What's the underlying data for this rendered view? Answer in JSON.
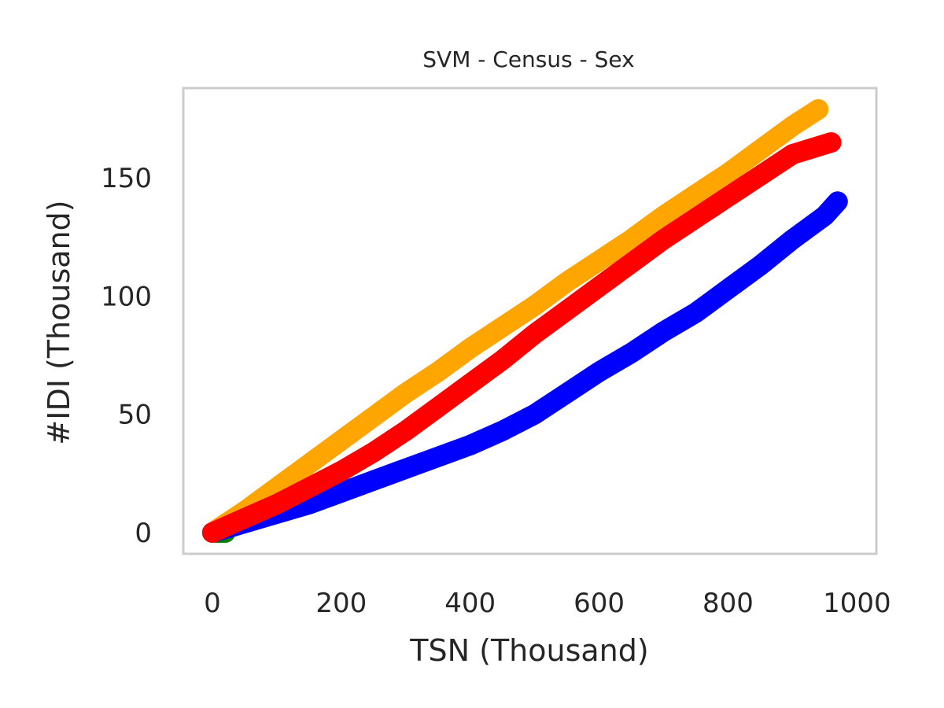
{
  "chart_data": {
    "type": "line",
    "title": "SVM - Census - Sex",
    "xlabel": "TSN (Thousand)",
    "ylabel": "#IDI (Thousand)",
    "xlim": [
      -45,
      1030
    ],
    "ylim": [
      -9,
      188
    ],
    "xticks": [
      0,
      200,
      400,
      600,
      800,
      1000
    ],
    "yticks": [
      0,
      50,
      100,
      150
    ],
    "grid": false,
    "series": [
      {
        "color": "#008000",
        "x": [
          0,
          10,
          20
        ],
        "y": [
          0,
          0,
          0
        ]
      },
      {
        "color": "#0000ff",
        "x": [
          0,
          50,
          100,
          150,
          200,
          250,
          300,
          350,
          400,
          450,
          500,
          550,
          600,
          650,
          700,
          750,
          800,
          850,
          900,
          950,
          970
        ],
        "y": [
          0,
          4,
          8,
          12,
          17,
          22,
          27,
          32,
          37,
          43,
          50,
          59,
          68,
          76,
          85,
          93,
          103,
          113,
          124,
          134,
          140
        ]
      },
      {
        "color": "#ffa500",
        "x": [
          0,
          50,
          100,
          150,
          200,
          250,
          300,
          350,
          400,
          450,
          500,
          550,
          600,
          650,
          700,
          750,
          800,
          850,
          900,
          940
        ],
        "y": [
          0,
          9,
          19,
          29,
          39,
          49,
          59,
          68,
          78,
          87,
          96,
          106,
          115,
          124,
          134,
          143,
          152,
          162,
          172,
          179
        ]
      },
      {
        "color": "#ff0000",
        "x": [
          0,
          50,
          100,
          150,
          200,
          250,
          300,
          350,
          400,
          450,
          500,
          550,
          600,
          650,
          700,
          750,
          800,
          850,
          900,
          960
        ],
        "y": [
          0,
          6,
          12,
          19,
          26,
          34,
          43,
          53,
          63,
          73,
          84,
          94,
          104,
          114,
          124,
          133,
          142,
          151,
          160,
          165
        ]
      }
    ]
  }
}
